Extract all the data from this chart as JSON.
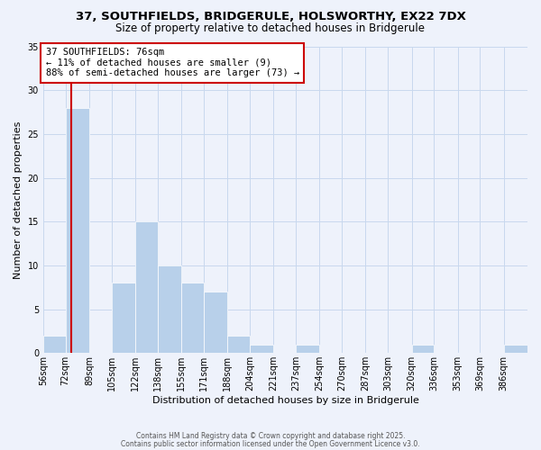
{
  "title1": "37, SOUTHFIELDS, BRIDGERULE, HOLSWORTHY, EX22 7DX",
  "title2": "Size of property relative to detached houses in Bridgerule",
  "xlabel": "Distribution of detached houses by size in Bridgerule",
  "ylabel": "Number of detached properties",
  "footer1": "Contains HM Land Registry data © Crown copyright and database right 2025.",
  "footer2": "Contains public sector information licensed under the Open Government Licence v3.0.",
  "annotation_title": "37 SOUTHFIELDS: 76sqm",
  "annotation_line1": "← 11% of detached houses are smaller (9)",
  "annotation_line2": "88% of semi-detached houses are larger (73) →",
  "bar_edges": [
    56,
    72,
    89,
    105,
    122,
    138,
    155,
    171,
    188,
    204,
    221,
    237,
    254,
    270,
    287,
    303,
    320,
    336,
    353,
    369,
    386
  ],
  "bar_heights": [
    2,
    28,
    0,
    8,
    15,
    10,
    8,
    7,
    2,
    1,
    0,
    1,
    0,
    0,
    0,
    0,
    1,
    0,
    0,
    0,
    1
  ],
  "bar_color": "#b8d0ea",
  "bar_edgecolor": "#ffffff",
  "marker_value": 76,
  "marker_color": "#cc0000",
  "ylim": [
    0,
    35
  ],
  "yticks": [
    0,
    5,
    10,
    15,
    20,
    25,
    30,
    35
  ],
  "xlabels": [
    "56sqm",
    "72sqm",
    "89sqm",
    "105sqm",
    "122sqm",
    "138sqm",
    "155sqm",
    "171sqm",
    "188sqm",
    "204sqm",
    "221sqm",
    "237sqm",
    "254sqm",
    "270sqm",
    "287sqm",
    "303sqm",
    "320sqm",
    "336sqm",
    "353sqm",
    "369sqm",
    "386sqm"
  ],
  "background_color": "#eef2fb",
  "grid_color": "#c8d8ee",
  "annotation_box_color": "#ffffff",
  "annotation_box_edgecolor": "#cc0000",
  "title1_fontsize": 9.5,
  "title2_fontsize": 8.5,
  "xlabel_fontsize": 8,
  "ylabel_fontsize": 8,
  "tick_fontsize": 7,
  "annotation_fontsize": 7.5,
  "footer_fontsize": 5.5
}
